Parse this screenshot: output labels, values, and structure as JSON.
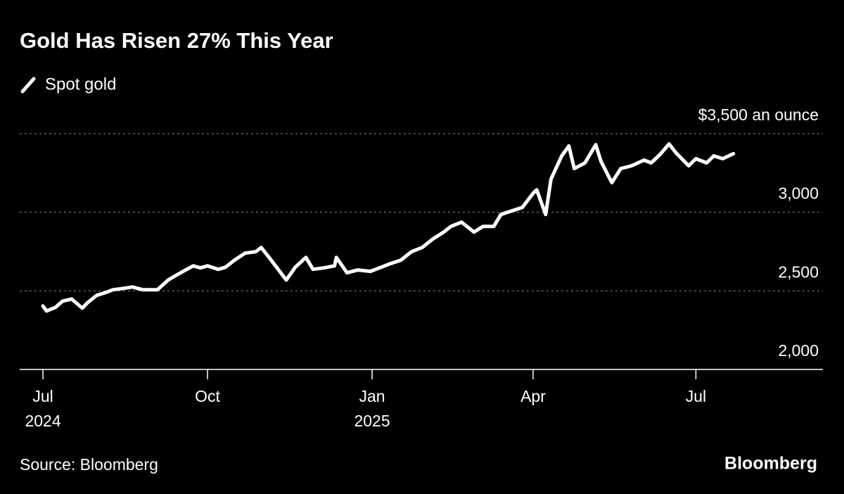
{
  "chart_data": {
    "type": "line",
    "title": "Gold Has Risen 27% This Year",
    "source": "Source: Bloomberg",
    "logo": "Bloomberg",
    "grid": true,
    "x": [
      "2024-07-01",
      "2024-07-03",
      "2024-07-08",
      "2024-07-12",
      "2024-07-17",
      "2024-07-23",
      "2024-07-26",
      "2024-07-31",
      "2024-08-05",
      "2024-08-09",
      "2024-08-15",
      "2024-08-20",
      "2024-08-26",
      "2024-09-03",
      "2024-09-09",
      "2024-09-13",
      "2024-09-18",
      "2024-09-23",
      "2024-09-27",
      "2024-10-01",
      "2024-10-07",
      "2024-10-11",
      "2024-10-16",
      "2024-10-22",
      "2024-10-28",
      "2024-10-31",
      "2024-11-05",
      "2024-11-08",
      "2024-11-14",
      "2024-11-19",
      "2024-11-25",
      "2024-11-29",
      "2024-12-05",
      "2024-12-11",
      "2024-12-12",
      "2024-12-18",
      "2024-12-24",
      "2024-12-31",
      "2025-01-06",
      "2025-01-10",
      "2025-01-17",
      "2025-01-23",
      "2025-01-29",
      "2025-02-04",
      "2025-02-10",
      "2025-02-14",
      "2025-02-20",
      "2025-02-27",
      "2025-03-04",
      "2025-03-10",
      "2025-03-14",
      "2025-03-20",
      "2025-03-26",
      "2025-04-01",
      "2025-04-03",
      "2025-04-08",
      "2025-04-11",
      "2025-04-17",
      "2025-04-21",
      "2025-04-24",
      "2025-04-30",
      "2025-05-06",
      "2025-05-09",
      "2025-05-15",
      "2025-05-20",
      "2025-05-26",
      "2025-06-02",
      "2025-06-06",
      "2025-06-11",
      "2025-06-16",
      "2025-06-20",
      "2025-06-27",
      "2025-07-01",
      "2025-07-07",
      "2025-07-11",
      "2025-07-16",
      "2025-07-22"
    ],
    "series": [
      {
        "name": "Spot gold",
        "color": "#ffffff",
        "values": [
          2404,
          2372,
          2395,
          2435,
          2448,
          2390,
          2426,
          2471,
          2489,
          2507,
          2516,
          2525,
          2507,
          2507,
          2569,
          2596,
          2628,
          2659,
          2646,
          2659,
          2637,
          2650,
          2695,
          2740,
          2749,
          2776,
          2704,
          2659,
          2569,
          2650,
          2713,
          2637,
          2646,
          2659,
          2713,
          2615,
          2633,
          2624,
          2650,
          2668,
          2695,
          2749,
          2776,
          2830,
          2874,
          2910,
          2937,
          2874,
          2910,
          2910,
          2986,
          3009,
          3031,
          3121,
          3143,
          2986,
          3211,
          3359,
          3422,
          3278,
          3314,
          3430,
          3323,
          3189,
          3278,
          3296,
          3332,
          3314,
          3368,
          3435,
          3377,
          3296,
          3341,
          3314,
          3359,
          3341,
          3373
        ]
      }
    ],
    "xlim": [
      "2024-06-18",
      "2025-09-10"
    ],
    "xticks": [
      {
        "value": "2024-07-01",
        "label": [
          "Jul",
          "2024"
        ]
      },
      {
        "value": "2024-10-01",
        "label": [
          "Oct"
        ]
      },
      {
        "value": "2025-01-01",
        "label": [
          "Jan",
          "2025"
        ]
      },
      {
        "value": "2025-04-01",
        "label": [
          "Apr"
        ]
      },
      {
        "value": "2025-07-01",
        "label": [
          "Jul"
        ]
      }
    ],
    "ylim": [
      2000,
      3500
    ],
    "yticks": [
      {
        "value": 2000,
        "label": "2,000"
      },
      {
        "value": 2500,
        "label": "2,500"
      },
      {
        "value": 3000,
        "label": "3,000"
      },
      {
        "value": 3500,
        "label": "$3,500 an ounce"
      }
    ]
  }
}
